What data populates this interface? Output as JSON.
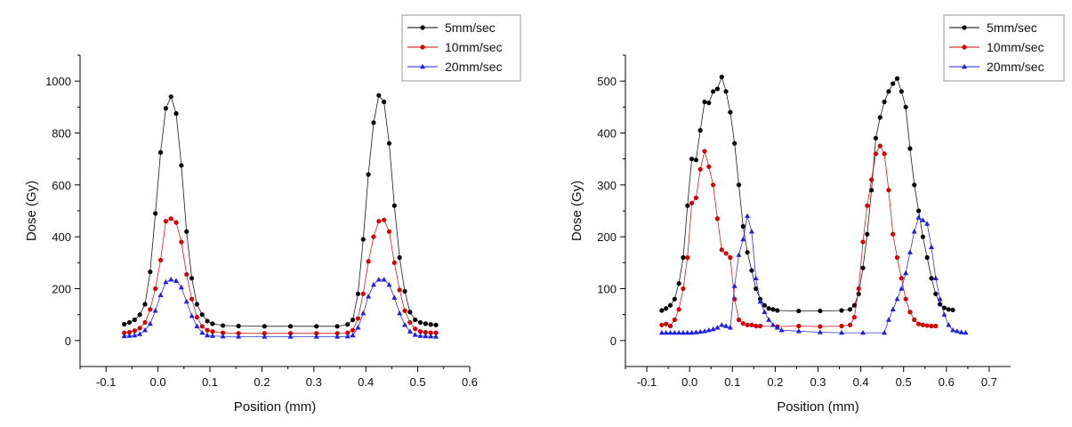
{
  "colors": {
    "black": "#000000",
    "red": "#d40000",
    "blue": "#1f1fe0",
    "axis": "#000000",
    "legend_border": "#9a9a9a"
  },
  "chart_data": [
    {
      "type": "line",
      "title": "",
      "xlabel": "Position (mm)",
      "ylabel": "Dose (Gy)",
      "xlim": [
        -0.15,
        0.6
      ],
      "ylim": [
        -100,
        1100
      ],
      "xticks": [
        "-0.1",
        "0.0",
        "0.1",
        "0.2",
        "0.3",
        "0.4",
        "0.5",
        "0.6"
      ],
      "yticks": [
        "0",
        "200",
        "400",
        "600",
        "800",
        "1000"
      ],
      "grid": false,
      "legend_position": "top-right",
      "series": [
        {
          "name": "5mm/sec",
          "color": "#000000",
          "marker": "circle",
          "x": [
            -0.065,
            -0.055,
            -0.045,
            -0.035,
            -0.025,
            -0.015,
            -0.005,
            0.005,
            0.015,
            0.025,
            0.035,
            0.045,
            0.055,
            0.065,
            0.075,
            0.085,
            0.095,
            0.105,
            0.125,
            0.155,
            0.205,
            0.255,
            0.305,
            0.345,
            0.365,
            0.375,
            0.385,
            0.395,
            0.405,
            0.415,
            0.425,
            0.435,
            0.445,
            0.455,
            0.465,
            0.475,
            0.485,
            0.495,
            0.505,
            0.515,
            0.525,
            0.535
          ],
          "y": [
            63,
            70,
            80,
            100,
            140,
            265,
            490,
            725,
            895,
            940,
            875,
            675,
            420,
            240,
            140,
            100,
            75,
            65,
            58,
            56,
            55,
            55,
            55,
            55,
            62,
            80,
            180,
            390,
            640,
            840,
            945,
            920,
            760,
            520,
            320,
            190,
            110,
            80,
            70,
            65,
            62,
            60
          ]
        },
        {
          "name": "10mm/sec",
          "color": "#d40000",
          "marker": "circle",
          "x": [
            -0.065,
            -0.055,
            -0.045,
            -0.035,
            -0.025,
            -0.015,
            -0.005,
            0.005,
            0.015,
            0.025,
            0.035,
            0.045,
            0.055,
            0.065,
            0.075,
            0.085,
            0.095,
            0.105,
            0.125,
            0.155,
            0.205,
            0.255,
            0.305,
            0.345,
            0.365,
            0.375,
            0.385,
            0.395,
            0.405,
            0.415,
            0.425,
            0.435,
            0.445,
            0.455,
            0.465,
            0.475,
            0.485,
            0.495,
            0.505,
            0.515,
            0.525,
            0.535
          ],
          "y": [
            30,
            32,
            38,
            48,
            70,
            120,
            200,
            310,
            460,
            470,
            455,
            380,
            255,
            160,
            90,
            55,
            40,
            35,
            30,
            28,
            28,
            28,
            28,
            28,
            30,
            40,
            85,
            180,
            305,
            400,
            460,
            465,
            420,
            300,
            195,
            115,
            70,
            45,
            35,
            32,
            30,
            30
          ]
        },
        {
          "name": "20mm/sec",
          "color": "#1f1fe0",
          "marker": "triangle",
          "x": [
            -0.065,
            -0.055,
            -0.045,
            -0.035,
            -0.025,
            -0.015,
            -0.005,
            0.005,
            0.015,
            0.025,
            0.035,
            0.045,
            0.055,
            0.065,
            0.075,
            0.085,
            0.095,
            0.105,
            0.125,
            0.155,
            0.205,
            0.255,
            0.305,
            0.345,
            0.365,
            0.375,
            0.385,
            0.395,
            0.405,
            0.415,
            0.425,
            0.435,
            0.445,
            0.455,
            0.465,
            0.475,
            0.485,
            0.495,
            0.505,
            0.515,
            0.525,
            0.535
          ],
          "y": [
            17,
            18,
            20,
            25,
            40,
            65,
            115,
            175,
            225,
            235,
            230,
            205,
            150,
            95,
            55,
            30,
            20,
            18,
            16,
            15,
            15,
            15,
            15,
            15,
            16,
            20,
            50,
            105,
            170,
            215,
            235,
            235,
            215,
            165,
            105,
            60,
            35,
            22,
            18,
            17,
            16,
            15
          ]
        }
      ]
    },
    {
      "type": "line",
      "title": "",
      "xlabel": "Position (mm)",
      "ylabel": "Dose (Gy)",
      "xlim": [
        -0.15,
        0.75
      ],
      "ylim": [
        -50,
        550
      ],
      "xticks": [
        "-0.1",
        "0.0",
        "0.1",
        "0.2",
        "0.3",
        "0.4",
        "0.5",
        "0.6",
        "0.7"
      ],
      "yticks": [
        "0",
        "100",
        "200",
        "300",
        "400",
        "500"
      ],
      "grid": false,
      "legend_position": "top-right",
      "series": [
        {
          "name": "5mm/sec",
          "color": "#000000",
          "marker": "circle",
          "x": [
            -0.065,
            -0.055,
            -0.045,
            -0.035,
            -0.025,
            -0.015,
            -0.005,
            0.005,
            0.015,
            0.025,
            0.035,
            0.045,
            0.055,
            0.065,
            0.075,
            0.085,
            0.095,
            0.105,
            0.115,
            0.125,
            0.135,
            0.145,
            0.155,
            0.165,
            0.175,
            0.185,
            0.195,
            0.205,
            0.255,
            0.305,
            0.355,
            0.375,
            0.385,
            0.395,
            0.405,
            0.415,
            0.425,
            0.435,
            0.445,
            0.455,
            0.465,
            0.475,
            0.485,
            0.495,
            0.505,
            0.515,
            0.525,
            0.535,
            0.545,
            0.555,
            0.565,
            0.575,
            0.585,
            0.595,
            0.605,
            0.615
          ],
          "y": [
            58,
            62,
            68,
            80,
            110,
            160,
            260,
            350,
            348,
            405,
            460,
            458,
            480,
            485,
            508,
            480,
            440,
            380,
            300,
            220,
            170,
            135,
            100,
            80,
            68,
            62,
            60,
            58,
            57,
            57,
            58,
            60,
            68,
            90,
            140,
            205,
            290,
            390,
            430,
            460,
            480,
            495,
            505,
            480,
            450,
            370,
            300,
            250,
            200,
            160,
            120,
            90,
            70,
            63,
            60,
            59
          ]
        },
        {
          "name": "10mm/sec",
          "color": "#d40000",
          "marker": "circle",
          "x": [
            -0.065,
            -0.055,
            -0.045,
            -0.035,
            -0.025,
            -0.015,
            -0.005,
            0.005,
            0.015,
            0.025,
            0.035,
            0.045,
            0.055,
            0.065,
            0.075,
            0.085,
            0.095,
            0.105,
            0.115,
            0.125,
            0.135,
            0.145,
            0.155,
            0.165,
            0.205,
            0.255,
            0.305,
            0.355,
            0.375,
            0.385,
            0.395,
            0.405,
            0.415,
            0.425,
            0.435,
            0.445,
            0.455,
            0.465,
            0.475,
            0.485,
            0.495,
            0.505,
            0.515,
            0.525,
            0.535,
            0.545,
            0.555,
            0.565,
            0.575
          ],
          "y": [
            30,
            32,
            28,
            40,
            60,
            100,
            160,
            265,
            275,
            330,
            365,
            335,
            300,
            235,
            175,
            168,
            160,
            80,
            40,
            33,
            30,
            30,
            28,
            28,
            27,
            28,
            27,
            28,
            30,
            45,
            100,
            190,
            260,
            310,
            360,
            375,
            360,
            290,
            205,
            160,
            120,
            80,
            55,
            40,
            32,
            30,
            29,
            28,
            28
          ]
        },
        {
          "name": "20mm/sec",
          "color": "#1f1fe0",
          "marker": "triangle",
          "x": [
            -0.065,
            -0.055,
            -0.045,
            -0.035,
            -0.025,
            -0.015,
            -0.005,
            0.005,
            0.015,
            0.025,
            0.035,
            0.045,
            0.055,
            0.065,
            0.075,
            0.085,
            0.095,
            0.105,
            0.115,
            0.125,
            0.135,
            0.145,
            0.155,
            0.165,
            0.175,
            0.185,
            0.195,
            0.205,
            0.215,
            0.255,
            0.305,
            0.355,
            0.405,
            0.455,
            0.465,
            0.475,
            0.485,
            0.495,
            0.505,
            0.515,
            0.525,
            0.535,
            0.545,
            0.555,
            0.565,
            0.575,
            0.585,
            0.595,
            0.605,
            0.615,
            0.625,
            0.635,
            0.645
          ],
          "y": [
            15,
            15,
            15,
            15,
            15,
            15,
            15,
            15,
            16,
            17,
            18,
            20,
            22,
            25,
            30,
            28,
            25,
            105,
            165,
            195,
            240,
            210,
            120,
            75,
            55,
            40,
            30,
            25,
            20,
            18,
            16,
            15,
            15,
            15,
            40,
            60,
            80,
            100,
            130,
            170,
            210,
            237,
            232,
            225,
            180,
            120,
            80,
            50,
            30,
            20,
            18,
            16,
            15
          ]
        }
      ]
    }
  ]
}
